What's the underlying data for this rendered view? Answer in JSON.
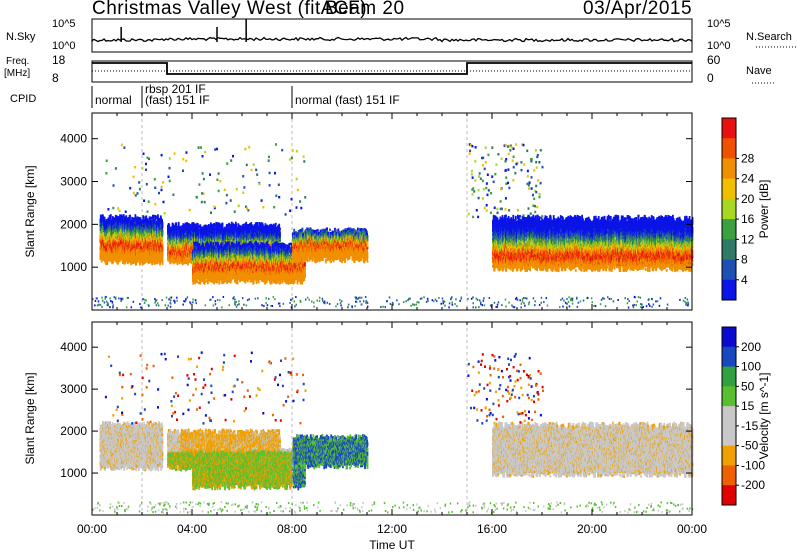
{
  "header": {
    "radar_title": "Christmas Valley West (fitACF)",
    "beam": "Beam 20",
    "date": "03/Apr/2015"
  },
  "colors": {
    "power_scale": [
      "#0a14e6",
      "#1e50b4",
      "#2f7a66",
      "#3aa040",
      "#a8d820",
      "#f0c000",
      "#f09000",
      "#f05000",
      "#e81010"
    ],
    "velocity_scale": [
      "#e00000",
      "#f06000",
      "#f0a000",
      "#c8c8c8",
      "#c8c8c8",
      "#58c030",
      "#30a040",
      "#1848c0",
      "#0a0ad0"
    ]
  },
  "chart_data": [
    {
      "type": "line",
      "name": "noise",
      "y_tick_labels": [
        "10^5",
        "10^0"
      ],
      "right_tick_labels": [
        "10^5",
        "10^0"
      ],
      "left_label": "N.Sky",
      "right_label": "N.Search",
      "x": [
        "00:00",
        "04:00",
        "08:00",
        "12:00",
        "16:00",
        "20:00",
        "00:00"
      ],
      "n_sky_spikes_at": [
        "01:10",
        "05:00",
        "06:10"
      ]
    },
    {
      "type": "line",
      "name": "frequency-and-nave",
      "left_label_lines": [
        "Freq.",
        "[MHz]"
      ],
      "left_ticks": [
        "18",
        "8"
      ],
      "right_ticks": [
        "60",
        "0"
      ],
      "right_label": "Nave",
      "freq_steps": [
        {
          "from": "00:00",
          "to": "03:00",
          "level": "high"
        },
        {
          "from": "03:00",
          "to": "15:00",
          "level": "low"
        },
        {
          "from": "15:00",
          "to": "24:00",
          "level": "high"
        }
      ]
    },
    {
      "type": "table",
      "name": "cpid",
      "label": "CPID",
      "segments": [
        {
          "start": "00:00",
          "text_lines": [
            "normal"
          ]
        },
        {
          "start": "02:00",
          "text_lines": [
            "rbsp 201 IF",
            "(fast) 151 IF"
          ]
        },
        {
          "start": "08:00",
          "text_lines": [
            "normal (fast) 151 IF"
          ]
        }
      ]
    },
    {
      "type": "heatmap",
      "name": "power",
      "ylabel": "Slant Range [km]",
      "ylim": [
        0,
        4600
      ],
      "y_ticks": [
        1000,
        2000,
        3000,
        4000
      ],
      "xlim": [
        "00:00",
        "24:00"
      ],
      "colorbar_label": "Power [dB]",
      "colorbar_ticks": [
        4,
        8,
        12,
        16,
        20,
        24,
        28
      ],
      "regions": [
        {
          "t": [
            0.3,
            2.8
          ],
          "r": [
            1150,
            2100
          ],
          "peak": 1500
        },
        {
          "t": [
            3.0,
            7.5
          ],
          "r": [
            1150,
            1950
          ],
          "peak": 1350
        },
        {
          "t": [
            4.0,
            8.5
          ],
          "r": [
            700,
            1500
          ],
          "peak": 1000
        },
        {
          "t": [
            8.0,
            11.0
          ],
          "r": [
            1200,
            1800
          ],
          "peak": 1500
        },
        {
          "t": [
            16.0,
            24.0
          ],
          "r": [
            1000,
            2100
          ],
          "peak": 1250
        }
      ]
    },
    {
      "type": "heatmap",
      "name": "velocity",
      "ylabel": "Slant Range [km]",
      "ylim": [
        0,
        4600
      ],
      "y_ticks": [
        1000,
        2000,
        3000,
        4000
      ],
      "xlim": [
        "00:00",
        "24:00"
      ],
      "xlabel": "Time UT",
      "x_tick_labels": [
        "00:00",
        "04:00",
        "08:00",
        "12:00",
        "16:00",
        "20:00",
        "00:00"
      ],
      "colorbar_label": "Velocity [m s^-1]",
      "colorbar_ticks": [
        200,
        100,
        50,
        15,
        -15,
        -50,
        -100,
        -200
      ]
    }
  ]
}
